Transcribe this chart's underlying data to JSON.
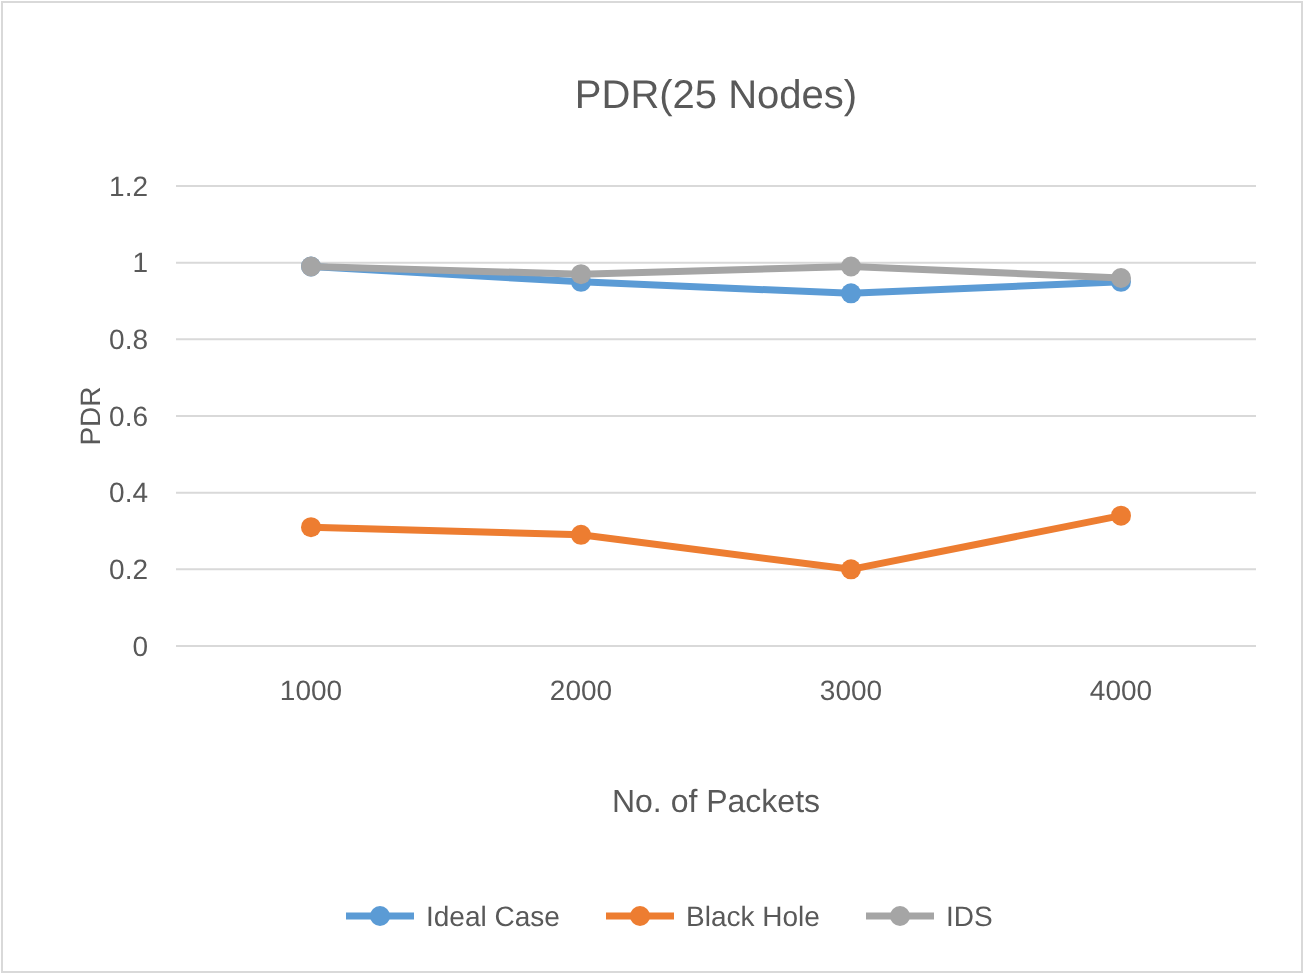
{
  "chart_data": {
    "type": "line",
    "title": "PDR(25 Nodes)",
    "xlabel": "No. of Packets",
    "ylabel": "PDR",
    "categories": [
      "1000",
      "2000",
      "3000",
      "4000"
    ],
    "series": [
      {
        "name": "Ideal Case",
        "color": "#5b9bd5",
        "values": [
          0.99,
          0.95,
          0.92,
          0.95
        ]
      },
      {
        "name": "Black Hole",
        "color": "#ed7d31",
        "values": [
          0.31,
          0.29,
          0.2,
          0.34
        ]
      },
      {
        "name": "IDS",
        "color": "#a5a5a5",
        "values": [
          0.99,
          0.97,
          0.99,
          0.96
        ]
      }
    ],
    "ylim": [
      0,
      1.2
    ],
    "yticks": [
      0,
      0.2,
      0.4,
      0.6,
      0.8,
      1,
      1.2
    ],
    "grid": "y",
    "legend": "bottom",
    "marker": "circle",
    "line_style": "solid"
  }
}
